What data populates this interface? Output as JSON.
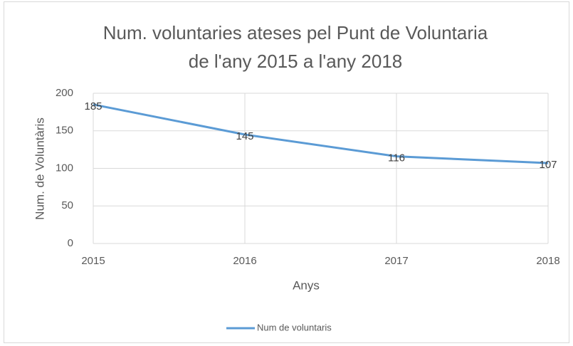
{
  "chart_data": {
    "type": "line",
    "title": [
      "Num. voluntaries ateses pel Punt de Voluntaria",
      "de l'any 2015 a l'any 2018"
    ],
    "x": [
      2015,
      2016,
      2017,
      2018
    ],
    "series": [
      {
        "name": "Num de voluntaris",
        "color": "#5b9bd5",
        "values": [
          185,
          145,
          116,
          107
        ]
      }
    ],
    "xlabel": "Anys",
    "ylabel": "Num. de Voluntàris",
    "xlim": [
      2015,
      2018
    ],
    "xticks": [
      2015,
      2016,
      2017,
      2018
    ],
    "ylim": [
      0,
      200
    ],
    "yticks": [
      0,
      50,
      100,
      150,
      200
    ],
    "grid": true,
    "legend": "bottom",
    "data_labels": true
  }
}
